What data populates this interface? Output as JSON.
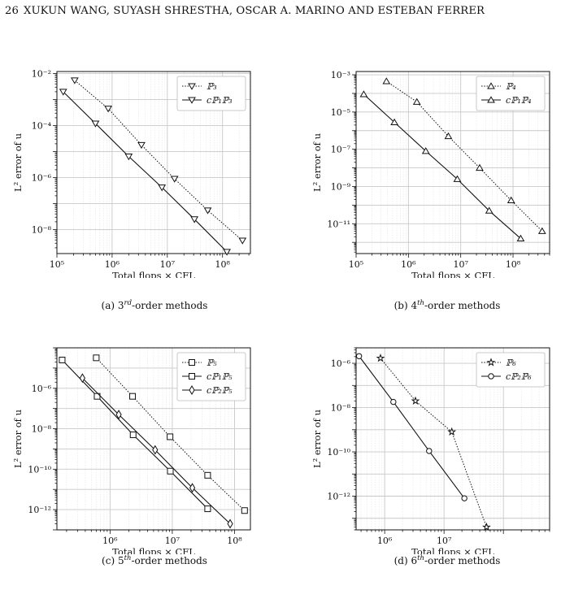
{
  "header": {
    "page_number": "26",
    "authors": "XUKUN WANG, SUYASH SHRESTHA, OSCAR A. MARINO AND ESTEBAN FERRER"
  },
  "chart_data": [
    {
      "id": "a",
      "type": "line",
      "caption_pre": "(a) 3",
      "caption_sup": "rd",
      "caption_post": "-order methods",
      "xlabel": "Total flops × CFL",
      "ylabel": "L² error of u",
      "xscale": "log",
      "yscale": "log",
      "xlim": [
        100000,
        320000000
      ],
      "ylim": [
        1.2e-09,
        0.012
      ],
      "xticks": [
        {
          "v": 100000,
          "label": "10⁵"
        },
        {
          "v": 1000000,
          "label": "10⁶"
        },
        {
          "v": 10000000,
          "label": "10⁷"
        },
        {
          "v": 100000000,
          "label": "10⁸"
        }
      ],
      "yticks": [
        {
          "v": 1e-08,
          "label": "10⁻⁸"
        },
        {
          "v": 1e-06,
          "label": "10⁻⁶"
        },
        {
          "v": 0.0001,
          "label": "10⁻⁴"
        },
        {
          "v": 0.01,
          "label": "10⁻²"
        }
      ],
      "grid": true,
      "legend": "top-right",
      "series": [
        {
          "name": "ℙ₃",
          "style": "dotted",
          "marker": "tri-down",
          "x": [
            210000,
            850000,
            3400000,
            13500000,
            54000000,
            230000000
          ],
          "y": [
            0.0055,
            0.00045,
            1.8e-05,
            9e-07,
            5.5e-08,
            3.8e-09
          ]
        },
        {
          "name": "cℙ₁ℙ₃",
          "style": "solid",
          "marker": "tri-down",
          "x": [
            130000,
            500000,
            2000000,
            8000000,
            31000000,
            120000000
          ],
          "y": [
            0.002,
            0.00012,
            6.5e-06,
            4.2e-07,
            2.5e-08,
            1.4e-09
          ]
        }
      ]
    },
    {
      "id": "b",
      "type": "line",
      "caption_pre": "(b) 4",
      "caption_sup": "th",
      "caption_post": "-order methods",
      "xlabel": "Total flops × CFL",
      "ylabel": "L² error of u",
      "xscale": "log",
      "yscale": "log",
      "xlim": [
        100000,
        500000000
      ],
      "ylim": [
        2.5e-13,
        0.0015
      ],
      "xticks": [
        {
          "v": 100000,
          "label": "10⁵"
        },
        {
          "v": 1000000,
          "label": "10⁶"
        },
        {
          "v": 10000000,
          "label": "10⁷"
        },
        {
          "v": 100000000,
          "label": "10⁸"
        }
      ],
      "yticks": [
        {
          "v": 1e-11,
          "label": "10⁻¹¹"
        },
        {
          "v": 1e-09,
          "label": "10⁻⁹"
        },
        {
          "v": 1e-07,
          "label": "10⁻⁷"
        },
        {
          "v": 1e-05,
          "label": "10⁻⁵"
        },
        {
          "v": 0.001,
          "label": "10⁻³"
        }
      ],
      "grid": true,
      "legend": "top-right",
      "series": [
        {
          "name": "ℙ₄",
          "style": "dotted",
          "marker": "tri-up",
          "x": [
            380000,
            1450000,
            5800000,
            23000000,
            92000000,
            360000000
          ],
          "y": [
            0.00045,
            3.5e-05,
            5e-07,
            1e-08,
            1.8e-10,
            4e-12
          ]
        },
        {
          "name": "cℙ₁ℙ₄",
          "style": "solid",
          "marker": "tri-up",
          "x": [
            140000,
            540000,
            2150000,
            8600000,
            35000000,
            140000000
          ],
          "y": [
            9e-05,
            2.8e-06,
            8e-08,
            2.5e-09,
            5e-11,
            1.6e-12
          ]
        }
      ]
    },
    {
      "id": "c",
      "type": "line",
      "caption_pre": "(c) 5",
      "caption_sup": "th",
      "caption_post": "-order methods",
      "xlabel": "Total flops × CFL",
      "ylabel": "L² error of u",
      "xscale": "log",
      "yscale": "log",
      "xlim": [
        140000,
        180000000
      ],
      "ylim": [
        1e-13,
        0.0001
      ],
      "xticks": [
        {
          "v": 1000000,
          "label": "10⁶"
        },
        {
          "v": 10000000,
          "label": "10⁷"
        },
        {
          "v": 100000000,
          "label": "10⁸"
        }
      ],
      "yticks": [
        {
          "v": 1e-12,
          "label": "10⁻¹²"
        },
        {
          "v": 1e-10,
          "label": "10⁻¹⁰"
        },
        {
          "v": 1e-08,
          "label": "10⁻⁸"
        },
        {
          "v": 1e-06,
          "label": "10⁻⁶"
        }
      ],
      "grid": true,
      "legend": "top-right",
      "series": [
        {
          "name": "ℙ₅",
          "style": "dotted",
          "marker": "square",
          "x": [
            600000,
            2300000,
            9200000,
            37000000,
            145000000
          ],
          "y": [
            3.2e-05,
            4e-07,
            4e-09,
            5e-11,
            9e-13
          ]
        },
        {
          "name": "cℙ₁ℙ₅",
          "style": "solid",
          "marker": "square",
          "x": [
            170000,
            620000,
            2350000,
            9300000,
            37000000
          ],
          "y": [
            2.5e-05,
            4e-07,
            5e-09,
            8e-11,
            1.1e-12
          ]
        },
        {
          "name": "cℙ₂ℙ₅",
          "style": "solid",
          "marker": "diamond",
          "x": [
            360000,
            1380000,
            5300000,
            21000000,
            85000000
          ],
          "y": [
            3.2e-06,
            5e-08,
            9e-10,
            1.2e-11,
            2e-13
          ]
        }
      ]
    },
    {
      "id": "d",
      "type": "line",
      "caption_pre": "(d) 6",
      "caption_sup": "th",
      "caption_post": "-order methods",
      "xlabel": "Total flops × CFL",
      "ylabel": "L² error of u",
      "xscale": "log",
      "yscale": "log",
      "xlim": [
        330000,
        600000000
      ],
      "ylim": [
        3e-14,
        5e-06
      ],
      "xticks": [
        {
          "v": 1000000,
          "label": "10⁶"
        },
        {
          "v": 10000000,
          "label": "10⁷"
        }
      ],
      "yticks": [
        {
          "v": 1e-12,
          "label": "10⁻¹²"
        },
        {
          "v": 1e-10,
          "label": "10⁻¹⁰"
        },
        {
          "v": 1e-08,
          "label": "10⁻⁸"
        },
        {
          "v": 1e-06,
          "label": "10⁻⁶"
        }
      ],
      "grid": true,
      "legend": "top-right",
      "series": [
        {
          "name": "ℙ₆",
          "style": "dotted",
          "marker": "star",
          "x": [
            850000,
            3300000,
            13500000,
            52000000
          ],
          "y": [
            1.7e-06,
            2e-08,
            8e-10,
            4e-14
          ]
        },
        {
          "name": "cℙ₂ℙ₆",
          "style": "solid",
          "marker": "circle",
          "x": [
            370000,
            1400000,
            5600000,
            22000000
          ],
          "y": [
            2.1e-06,
            1.8e-08,
            1.1e-10,
            8e-13
          ]
        }
      ]
    }
  ]
}
